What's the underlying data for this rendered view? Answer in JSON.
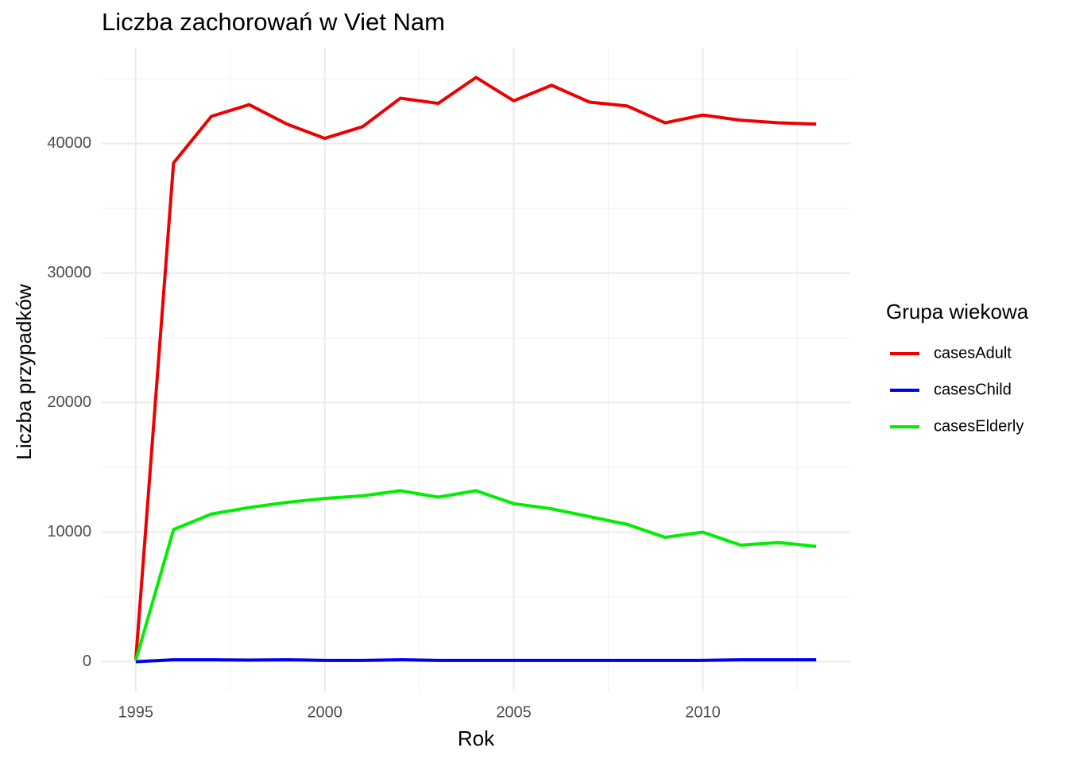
{
  "chart_data": {
    "type": "line",
    "title": "Liczba zachorowań w Viet Nam",
    "x_label": "Rok",
    "y_label": "Liczba przypadków",
    "legend_title": "Grupa wiekowa",
    "legend_position": "right",
    "grid": true,
    "x": [
      1995,
      1996,
      1997,
      1998,
      1999,
      2000,
      2001,
      2002,
      2003,
      2004,
      2005,
      2006,
      2007,
      2008,
      2009,
      2010,
      2011,
      2012,
      2013
    ],
    "series": [
      {
        "name": "casesAdult",
        "color": "#ee0000",
        "values": [
          100,
          38500,
          42100,
          43000,
          41500,
          40400,
          41300,
          43500,
          43100,
          45100,
          43300,
          44500,
          43200,
          42900,
          41600,
          42200,
          41800,
          41600,
          41500
        ]
      },
      {
        "name": "casesChild",
        "color": "#0000ee",
        "values": [
          0,
          150,
          150,
          120,
          150,
          100,
          100,
          150,
          100,
          100,
          100,
          100,
          100,
          100,
          100,
          100,
          150,
          150,
          150
        ]
      },
      {
        "name": "casesElderly",
        "color": "#00ee00",
        "values": [
          100,
          10200,
          11400,
          11900,
          12300,
          12600,
          12800,
          13200,
          12700,
          13200,
          12200,
          11800,
          11200,
          10600,
          9600,
          10000,
          9000,
          9200,
          8900
        ]
      }
    ],
    "xlim": [
      1994.1,
      2013.9
    ],
    "xticks": [
      1995,
      2000,
      2005,
      2010
    ],
    "x_minor_ticks": [
      1997.5,
      2002.5,
      2007.5,
      2012.5
    ],
    "ylim": [
      -2300,
      47400
    ],
    "yticks": [
      0,
      10000,
      20000,
      30000,
      40000
    ],
    "y_minor_ticks": [
      5000,
      15000,
      25000,
      35000,
      45000
    ]
  }
}
